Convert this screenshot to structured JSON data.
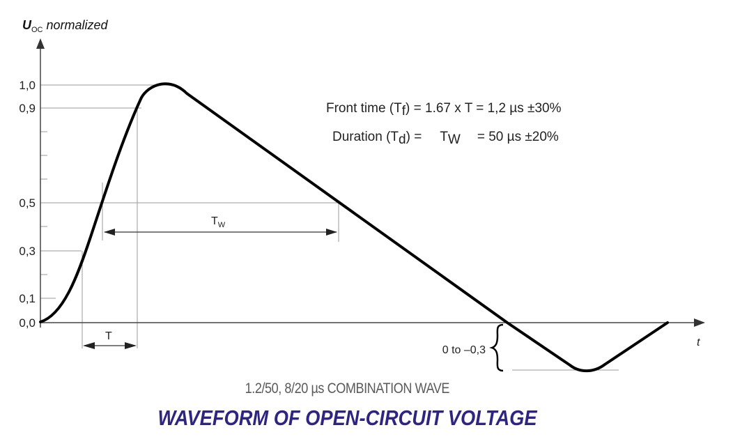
{
  "figure": {
    "y_axis_label_main": "U",
    "y_axis_label_sub": "OC",
    "y_axis_label_rest": " normalized",
    "x_axis_label": "t",
    "y_ticks": [
      "1,0",
      "0,9",
      "0,5",
      "0,3",
      "0,1",
      "0,0"
    ],
    "tw_label_main": "T",
    "tw_label_sub": "W",
    "t_label": "T",
    "undershoot_label": "0 to –0,3",
    "front_time": {
      "prefix": "Front time (T",
      "sub": "f",
      "suffix": ") =  1.67 x T = 1,2 µs ±30%"
    },
    "duration": {
      "prefix": "Duration (T",
      "sub": "d",
      "mid": ") =",
      "tw_main": "T",
      "tw_sub": "W",
      "suffix": "= 50 µs ±20%"
    }
  },
  "captions": {
    "subtitle": "1.2/50, 8/20 µs COMBINATION WAVE",
    "title": "WAVEFORM OF OPEN-CIRCUIT VOLTAGE"
  },
  "colors": {
    "curve": "#000000",
    "axis": "#444444",
    "guide": "#999999",
    "title": "#2e2580",
    "subtitle": "#5a5a5a"
  }
}
